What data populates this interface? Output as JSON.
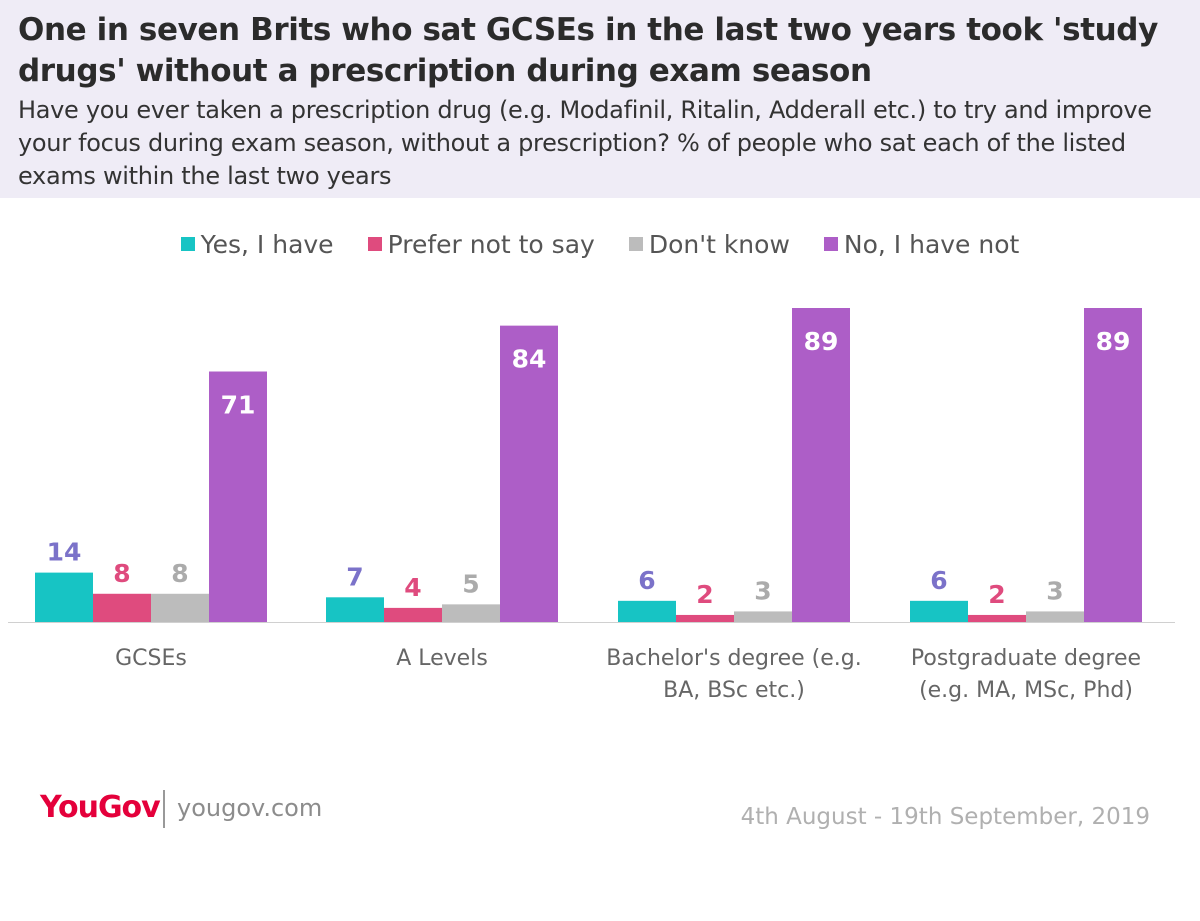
{
  "header": {
    "title": "One in seven Brits who sat GCSEs in the last two years took 'study drugs' without a prescription during exam season",
    "subtitle": "Have you ever taken a prescription drug (e.g. Modafinil, Ritalin, Adderall etc.) to try and improve your focus during exam season, without a prescription? % of people who sat each of the listed exams within the last two years"
  },
  "chart_data": {
    "type": "bar",
    "categories": [
      [
        "GCSEs"
      ],
      [
        "A Levels"
      ],
      [
        "Bachelor's degree (e.g.",
        "BA, BSc etc.)"
      ],
      [
        "Postgraduate degree",
        "(e.g. MA, MSc, Phd)"
      ]
    ],
    "series": [
      {
        "name": "Yes, I have",
        "color": "#17c4c4",
        "label_color": "#7b72c9",
        "values": [
          14,
          7,
          6,
          6
        ]
      },
      {
        "name": "Prefer not to say",
        "color": "#df4b7e",
        "label_color": "#df4b7e",
        "values": [
          8,
          4,
          2,
          2
        ]
      },
      {
        "name": "Don't know",
        "color": "#bcbcbc",
        "label_color": "#ababab",
        "values": [
          8,
          5,
          3,
          3
        ]
      },
      {
        "name": "No, I have not",
        "color": "#ad5ec7",
        "label_color": "#ffffff",
        "values": [
          71,
          84,
          89,
          89
        ]
      }
    ],
    "ylim": [
      0,
      89
    ],
    "legend_position": "top-center",
    "grid": false
  },
  "footer": {
    "logo_you": "You",
    "logo_gov": "Gov",
    "site": "yougov.com",
    "date": "4th August - 19th September, 2019"
  }
}
